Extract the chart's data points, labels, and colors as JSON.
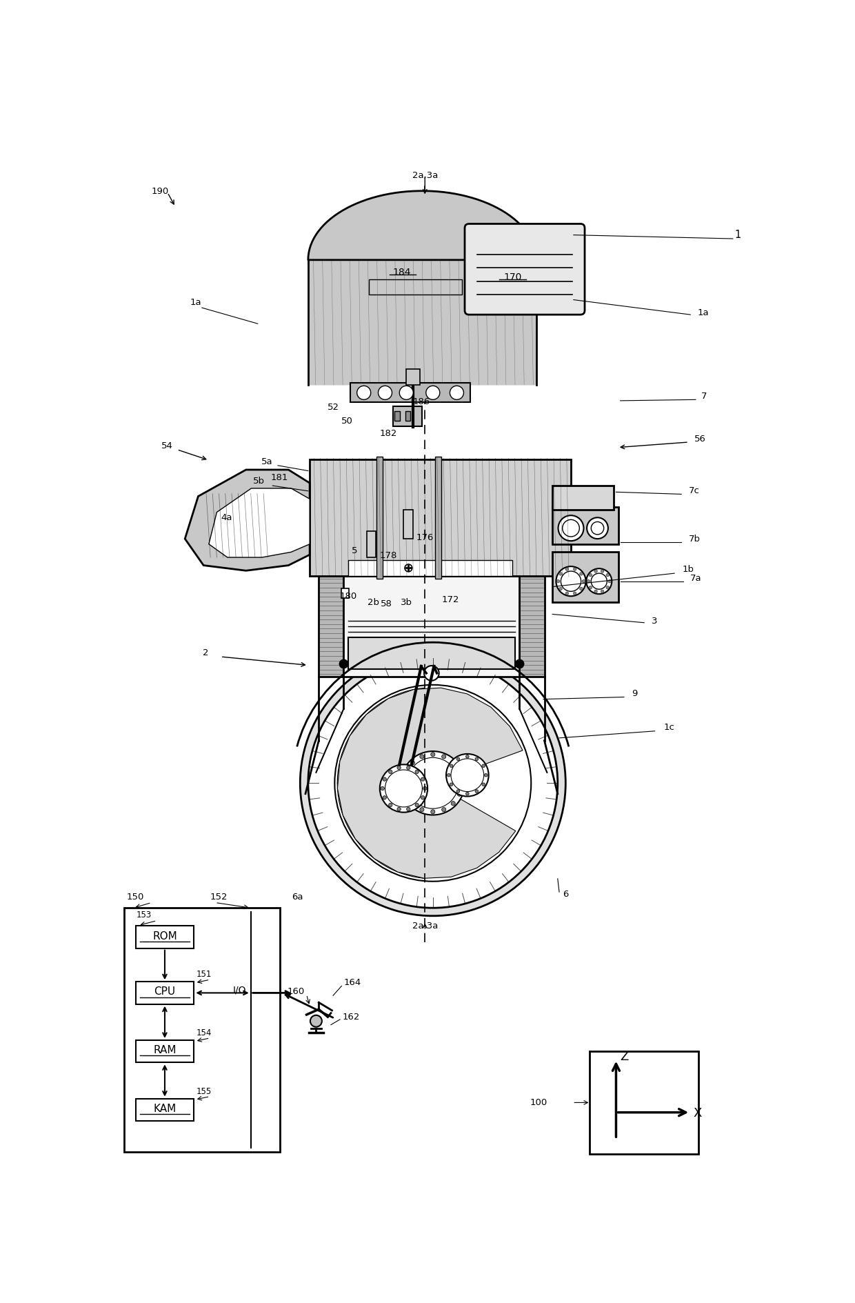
{
  "bg_color": "#ffffff",
  "line_color": "#000000",
  "gray_fill": "#d0d0d0",
  "light_gray": "#e8e8e8",
  "dark_gray": "#a0a0a0",
  "labels": {
    "top_center": "2a,3a",
    "bottom_center": "2a,3a",
    "l190": "190",
    "l1": "1",
    "l1a": "1a",
    "l1b": "1b",
    "l1c": "1c",
    "l2": "2",
    "l3": "3",
    "l4a": "4a",
    "l5": "5",
    "l5a": "5a",
    "l5b": "5b",
    "l6": "6",
    "l6a": "6a",
    "l7": "7",
    "l7a": "7a",
    "l7b": "7b",
    "l7c": "7c",
    "l9": "9",
    "l50": "50",
    "l52": "52",
    "l54": "54",
    "l56": "56",
    "l58": "58",
    "l170": "170",
    "l172": "172",
    "l176": "176",
    "l178": "178",
    "l180": "180",
    "l181": "181",
    "l182": "182",
    "l184": "184",
    "l186": "186",
    "l2b": "2b",
    "l3b": "3b",
    "l150": "150",
    "l151": "151",
    "l152": "152",
    "l153": "153",
    "l154": "154",
    "l155": "155",
    "lROM": "ROM",
    "lCPU": "CPU",
    "lRAM": "RAM",
    "lKAM": "KAM",
    "lIO": "I/O",
    "l160": "160",
    "l162": "162",
    "l164": "164",
    "l100": "100",
    "lZ": "Z",
    "lX": "X"
  }
}
